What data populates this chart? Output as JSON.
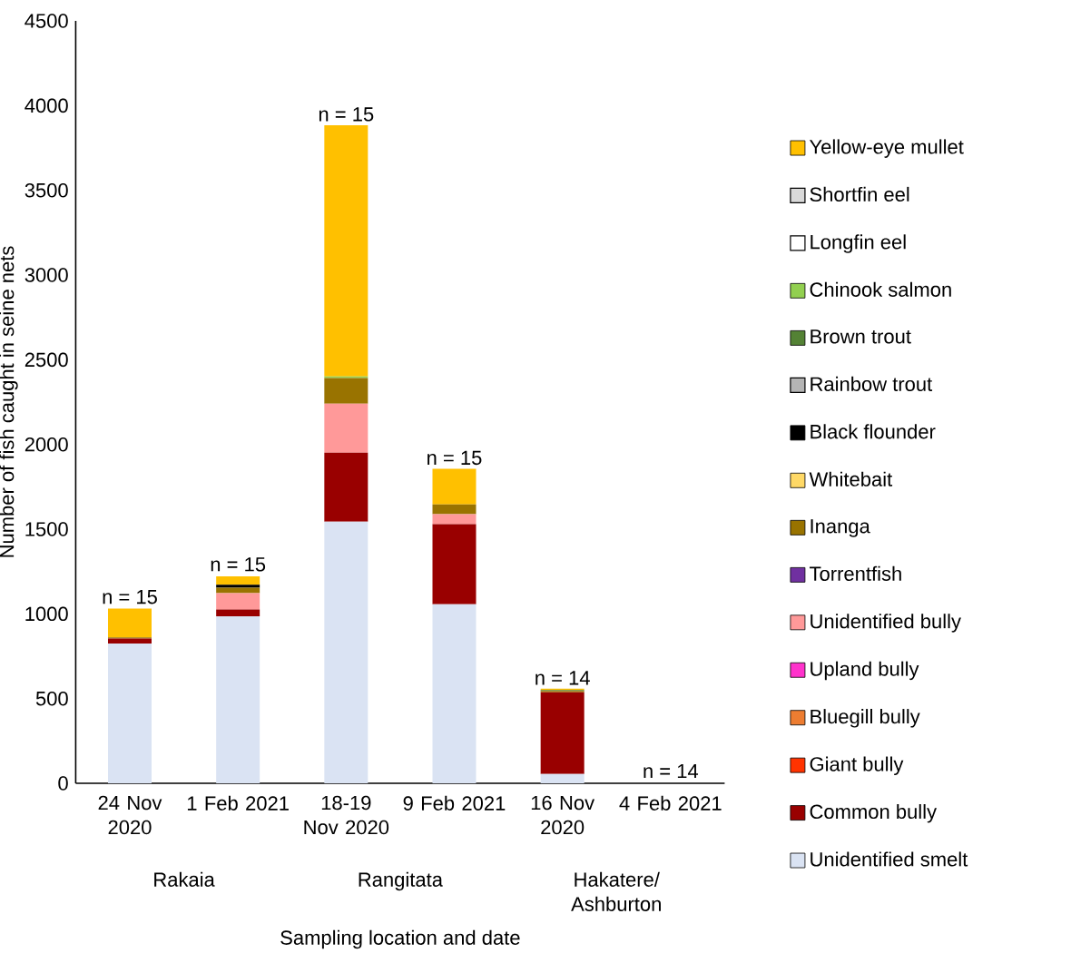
{
  "chart_data": {
    "type": "bar",
    "stacked": true,
    "xlabel": "Sampling location and date",
    "ylabel": "Number of fish caught in seine nets",
    "categories": [
      "24 Nov 2020",
      "1 Feb 2021",
      "18-19 Nov 2020",
      "9 Feb 2021",
      "16 Nov 2020",
      "4 Feb 2021"
    ],
    "ylim": [
      0,
      4500
    ],
    "yticks": [
      0,
      500,
      1000,
      1500,
      2000,
      2500,
      3000,
      3500,
      4000,
      4500
    ],
    "grid": false,
    "legend": "right",
    "series": [
      {
        "name": "Unidentified smelt",
        "color": "#dae3f3",
        "values": [
          825,
          986,
          1544,
          1056,
          55,
          0
        ]
      },
      {
        "name": "Common bully",
        "color": "#990000",
        "values": [
          30,
          40,
          407,
          473,
          482,
          0
        ]
      },
      {
        "name": "Giant bully",
        "color": "#ff3300",
        "values": [
          0,
          null,
          0,
          0,
          0,
          0
        ]
      },
      {
        "name": "Bluegill bully",
        "color": "#ed7d31",
        "values": [
          0,
          0,
          0,
          0,
          0,
          0
        ]
      },
      {
        "name": "Upland bully",
        "color": "#ff33cc",
        "values": [
          0,
          0,
          0,
          0,
          0,
          0
        ]
      },
      {
        "name": "Unidentified bully",
        "color": "#ff9999",
        "values": [
          0,
          96,
          290,
          59,
          0,
          0
        ]
      },
      {
        "name": "Torrentfish",
        "color": "#7030a0",
        "values": [
          0,
          0,
          0,
          0,
          0,
          0
        ]
      },
      {
        "name": "Inanga",
        "color": "#997300",
        "values": [
          6,
          32,
          151,
          58,
          8,
          0
        ]
      },
      {
        "name": "Whitebait",
        "color": "#ffd966",
        "values": [
          0,
          0,
          0,
          0,
          0,
          0
        ]
      },
      {
        "name": "Black flounder",
        "color": "#000000",
        "values": [
          0,
          18,
          0,
          0,
          0,
          null
        ]
      },
      {
        "name": "Rainbow trout",
        "color": "#b4b4b4",
        "values": [
          0,
          0,
          0,
          0,
          0,
          0
        ]
      },
      {
        "name": "Brown trout",
        "color": "#548235",
        "values": [
          null,
          0,
          0,
          0,
          6,
          0
        ]
      },
      {
        "name": "Chinook salmon",
        "color": "#92d050",
        "values": [
          0,
          0,
          9,
          0,
          0,
          0
        ]
      },
      {
        "name": "Longfin eel",
        "color": "#ffffff",
        "values": [
          0,
          0,
          0,
          0,
          0,
          0
        ]
      },
      {
        "name": "Shortfin eel",
        "color": "#d9d9d9",
        "values": [
          0,
          0,
          0,
          0,
          0,
          0
        ]
      },
      {
        "name": "Yellow-eye mullet",
        "color": "#ffc000",
        "values": [
          170,
          50,
          1483,
          210,
          7,
          0
        ]
      }
    ],
    "annotations": [
      {
        "text": "n = 15",
        "x": "24 Nov 2020",
        "y": 1035
      },
      {
        "text": "n = 15",
        "x": "1 Feb 2021",
        "y": 1227
      },
      {
        "text": "n = 15",
        "x": "18-19 Nov 2020",
        "y": 3884
      },
      {
        "text": "n = 15",
        "x": "9 Feb 2021",
        "y": 1856
      },
      {
        "text": "n = 14",
        "x": "16 Nov 2020",
        "y": 558
      },
      {
        "text": "n = 14",
        "x": "4 Feb 2021",
        "y": 8
      },
      "Rakaia",
      "Rangitata",
      "Hakatere/ Ashburton"
    ]
  }
}
